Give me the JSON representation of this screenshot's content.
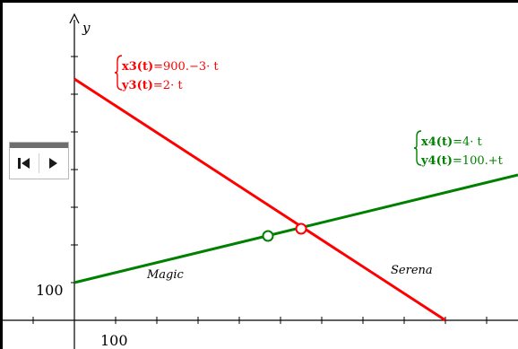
{
  "axes": {
    "x_label": "",
    "y_label": "y",
    "x_tick_label": "100",
    "y_tick_label": "100"
  },
  "animation_controls": {
    "reset_icon": "skip-to-start-icon",
    "play_icon": "play-icon"
  },
  "functions": [
    {
      "name": "Serena",
      "color": "#ff0000",
      "x_expr_lhs": "x3(t)",
      "x_expr_rhs": "=900.−3· t",
      "y_expr_lhs": "y3(t)",
      "y_expr_rhs": "=2· t",
      "x_intercept": 900,
      "slope_dx": -3,
      "slope_dy": 2
    },
    {
      "name": "Magic",
      "color": "#008000",
      "x_expr_lhs": "x4(t)",
      "x_expr_rhs": "=4· t",
      "y_expr_lhs": "y4(t)",
      "y_expr_rhs": "=100.+t",
      "y_intercept": 100,
      "slope_dx": 4,
      "slope_dy": 1
    }
  ],
  "points": [
    {
      "series": "Magic",
      "color": "#008000"
    },
    {
      "series": "Serena",
      "color": "#ff0000"
    }
  ]
}
